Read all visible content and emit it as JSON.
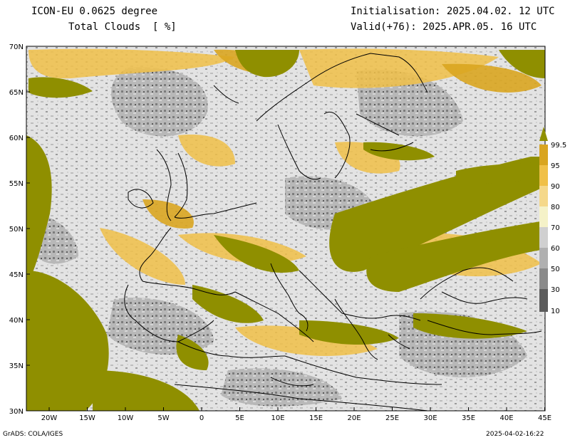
{
  "header": {
    "model": "ICON-EU 0.0625 degree",
    "variable": "Total Clouds  [ %]",
    "init": "Initialisation: 2025.04.02. 12 UTC",
    "valid": "Valid(+76): 2025.APR.05. 16 UTC"
  },
  "axes": {
    "lat_labels": [
      "70N",
      "65N",
      "60N",
      "55N",
      "50N",
      "45N",
      "40N",
      "35N",
      "30N"
    ],
    "lon_labels": [
      "20W",
      "15W",
      "10W",
      "5W",
      "0",
      "5E",
      "10E",
      "15E",
      "20E",
      "25E",
      "30E",
      "35E",
      "40E",
      "45E"
    ]
  },
  "legend": {
    "levels": [
      "99.5",
      "95",
      "90",
      "80",
      "70",
      "60",
      "50",
      "30",
      "10"
    ],
    "colors": {
      "c995": "#8f8f00",
      "c95": "#d9a520",
      "c90": "#f0c048",
      "c80": "#f5d88a",
      "c70": "#f5f2c8",
      "c60": "#d0d0d0",
      "c50": "#b0b0b0",
      "c30": "#8a8a8a",
      "c10": "#5c5c5c"
    }
  },
  "footer": {
    "left": "GrADS: COLA/IGES",
    "right": "2025-04-02-16:22"
  }
}
